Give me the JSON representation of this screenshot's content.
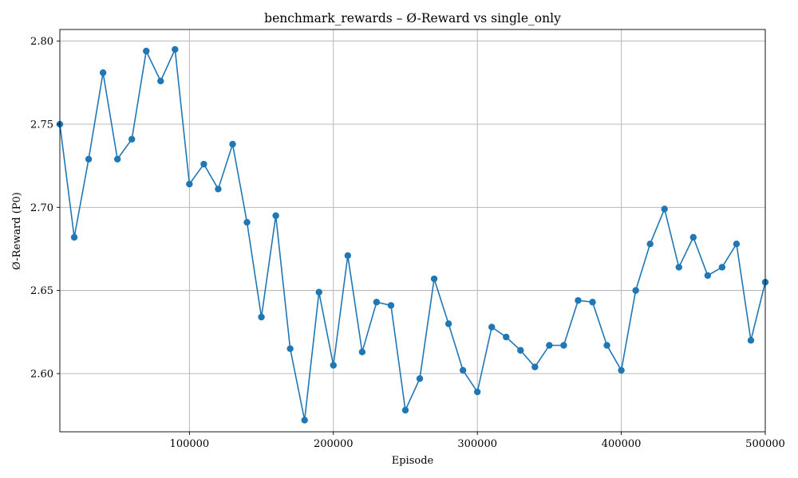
{
  "chart_data": {
    "type": "line",
    "title": "benchmark_rewards – Ø-Reward vs single_only",
    "xlabel": "Episode",
    "ylabel": "Ø-Reward (P0)",
    "xlim": [
      10000,
      500000
    ],
    "ylim": [
      2.565,
      2.807
    ],
    "xticks": [
      100000,
      200000,
      300000,
      400000,
      500000
    ],
    "xtick_labels": [
      "100000",
      "200000",
      "300000",
      "400000",
      "500000"
    ],
    "yticks": [
      2.6,
      2.65,
      2.7,
      2.75,
      2.8
    ],
    "ytick_labels": [
      "2.60",
      "2.65",
      "2.70",
      "2.75",
      "2.80"
    ],
    "grid": true,
    "marker": "circle",
    "color": "#1f77b4",
    "series": [
      {
        "x": [
          10000,
          20000,
          30000,
          40000,
          50000,
          60000,
          70000,
          80000,
          90000,
          100000,
          110000,
          120000,
          130000,
          140000,
          150000,
          160000,
          170000,
          180000,
          190000,
          200000,
          210000,
          220000,
          230000,
          240000,
          250000,
          260000,
          270000,
          280000,
          290000,
          300000,
          310000,
          320000,
          330000,
          340000,
          350000,
          360000,
          370000,
          380000,
          390000,
          400000,
          410000,
          420000,
          430000,
          440000,
          450000,
          460000,
          470000,
          480000,
          490000,
          500000
        ],
        "values": [
          2.75,
          2.682,
          2.729,
          2.781,
          2.729,
          2.741,
          2.794,
          2.776,
          2.795,
          2.714,
          2.726,
          2.711,
          2.738,
          2.691,
          2.634,
          2.695,
          2.615,
          2.572,
          2.649,
          2.605,
          2.671,
          2.613,
          2.643,
          2.641,
          2.578,
          2.597,
          2.657,
          2.63,
          2.602,
          2.589,
          2.628,
          2.622,
          2.614,
          2.604,
          2.617,
          2.617,
          2.644,
          2.643,
          2.617,
          2.602,
          2.65,
          2.678,
          2.699,
          2.664,
          2.682,
          2.659,
          2.664,
          2.678,
          2.62,
          2.655
        ]
      }
    ]
  }
}
